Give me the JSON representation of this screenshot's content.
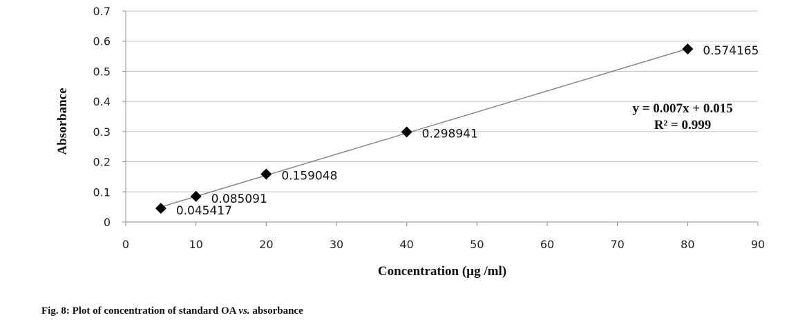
{
  "chart_data": {
    "type": "scatter",
    "xlabel": "Concentration (µg /ml)",
    "ylabel": "Absorbance",
    "xlim": [
      0,
      90
    ],
    "ylim": [
      0,
      0.7
    ],
    "xticks": [
      "0",
      "10",
      "20",
      "30",
      "40",
      "50",
      "60",
      "70",
      "80",
      "90"
    ],
    "yticks": [
      "0",
      "0.1",
      "0.2",
      "0.3",
      "0.4",
      "0.5",
      "0.6",
      "0.7"
    ],
    "grid": "horizontal",
    "x": [
      5,
      10,
      20,
      40,
      80
    ],
    "y": [
      0.045417,
      0.085091,
      0.159048,
      0.298941,
      0.574165
    ],
    "point_labels": [
      "0.045417",
      "0.085091",
      "0.159048",
      "0.298941",
      "0.574165"
    ],
    "trendline": {
      "equation": "y = 0.007x + 0.015",
      "r2": "R² = 0.999"
    },
    "marker": "diamond",
    "colors": {
      "marker": "#000000",
      "trendline": "#7f7f7f",
      "grid": "#c0c0c0"
    }
  },
  "caption": {
    "prefix": "Fig. 8: Plot of concentration of standard OA ",
    "italic": "vs.",
    "suffix": " absorbance"
  }
}
